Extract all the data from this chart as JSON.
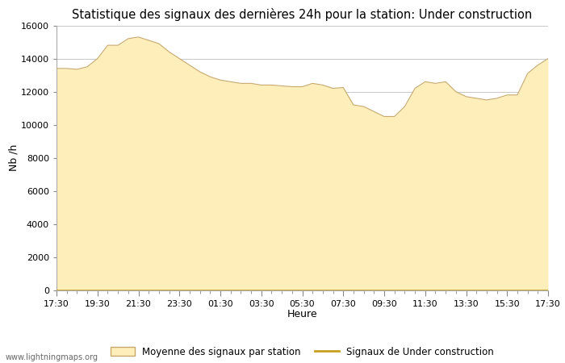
{
  "title": "Statistique des signaux des dernières 24h pour la station: Under construction",
  "xlabel": "Heure",
  "ylabel": "Nb /h",
  "xlim_labels": [
    "17:30",
    "19:30",
    "21:30",
    "23:30",
    "01:30",
    "03:30",
    "05:30",
    "07:30",
    "09:30",
    "11:30",
    "13:30",
    "15:30",
    "17:30"
  ],
  "ylim": [
    0,
    16000
  ],
  "yticks": [
    0,
    2000,
    4000,
    6000,
    8000,
    10000,
    12000,
    14000,
    16000
  ],
  "fill_color": "#FDEEBA",
  "fill_edge_color": "#C8A86B",
  "line_color": "#C8A020",
  "bg_color": "#FFFFFF",
  "grid_color": "#C8C8C8",
  "title_fontsize": 10.5,
  "legend_label_fill": "Moyenne des signaux par station",
  "legend_label_line": "Signaux de Under construction",
  "watermark": "www.lightningmaps.org",
  "x_values": [
    0,
    1,
    2,
    3,
    4,
    5,
    6,
    7,
    8,
    9,
    10,
    11,
    12,
    13,
    14,
    15,
    16,
    17,
    18,
    19,
    20,
    21,
    22,
    23,
    24,
    25,
    26,
    27,
    28,
    29,
    30,
    31,
    32,
    33,
    34,
    35,
    36,
    37,
    38,
    39,
    40,
    41,
    42,
    43,
    44,
    45,
    46,
    47,
    48
  ],
  "y_fill": [
    13400,
    13400,
    13350,
    13500,
    14000,
    14800,
    14800,
    15200,
    15300,
    15100,
    14900,
    14400,
    14000,
    13600,
    13200,
    12900,
    12700,
    12600,
    12500,
    12500,
    12400,
    12400,
    12350,
    12300,
    12300,
    12500,
    12400,
    12200,
    12250,
    11200,
    11100,
    10800,
    10500,
    10500,
    11100,
    12200,
    12600,
    12500,
    12600,
    12000,
    11700,
    11600,
    11500,
    11600,
    11800,
    11800,
    13100,
    13600,
    14000
  ],
  "y_line": [
    0,
    0,
    0,
    0,
    0,
    0,
    0,
    0,
    0,
    0,
    0,
    0,
    0,
    0,
    0,
    0,
    0,
    0,
    0,
    0,
    0,
    0,
    0,
    0,
    0,
    0,
    0,
    0,
    0,
    0,
    0,
    0,
    0,
    0,
    0,
    0,
    0,
    0,
    0,
    0,
    0,
    0,
    0,
    0,
    0,
    0,
    0,
    0,
    0
  ]
}
